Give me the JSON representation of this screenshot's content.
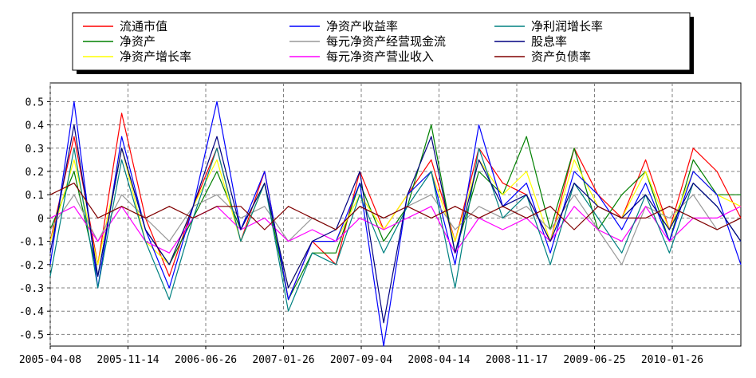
{
  "chart_data": {
    "type": "line",
    "title": "",
    "xlabel": "",
    "ylabel": "",
    "ylim": [
      -0.55,
      0.58
    ],
    "grid": true,
    "legend_position": "top",
    "y_ticks": [
      0.5,
      0.4,
      0.3,
      0.2,
      0.1,
      0,
      -0.1,
      -0.2,
      -0.3,
      -0.4,
      -0.5
    ],
    "x_tick_labels": [
      "2005-04-08",
      "2005-11-14",
      "2006-06-26",
      "2007-01-26",
      "2007-09-04",
      "2008-04-14",
      "2008-11-17",
      "2009-06-25",
      "2010-01-26"
    ],
    "series": [
      {
        "name": "流通市值",
        "color": "#ff0000",
        "values": [
          -0.1,
          0.35,
          -0.2,
          0.45,
          0.0,
          -0.25,
          0.05,
          0.3,
          -0.1,
          0.2,
          -0.35,
          -0.1,
          -0.2,
          0.2,
          -0.05,
          0.1,
          0.25,
          -0.1,
          0.3,
          0.15,
          0.1,
          -0.1,
          0.3,
          0.1,
          0.0,
          0.25,
          -0.05,
          0.3,
          0.2,
          0.0
        ]
      },
      {
        "name": "净资产",
        "color": "#008000",
        "values": [
          -0.05,
          0.2,
          -0.25,
          0.3,
          -0.05,
          -0.2,
          0.0,
          0.2,
          -0.05,
          0.15,
          -0.35,
          -0.15,
          -0.15,
          0.15,
          -0.1,
          0.05,
          0.4,
          -0.15,
          0.2,
          0.1,
          0.35,
          -0.05,
          0.3,
          -0.05,
          0.1,
          0.2,
          -0.1,
          0.25,
          0.1,
          0.1
        ]
      },
      {
        "name": "净资产增长率",
        "color": "#ffff00",
        "values": [
          -0.1,
          0.25,
          -0.2,
          0.3,
          -0.1,
          -0.2,
          0.05,
          0.25,
          -0.1,
          0.15,
          -0.3,
          -0.1,
          -0.1,
          0.1,
          -0.05,
          0.1,
          0.2,
          -0.1,
          0.25,
          0.1,
          0.2,
          -0.1,
          0.25,
          0.05,
          0.0,
          0.2,
          -0.05,
          0.2,
          0.1,
          0.05
        ]
      },
      {
        "name": "净资产收益率",
        "color": "#0000ff",
        "values": [
          -0.2,
          0.5,
          -0.3,
          0.35,
          -0.05,
          -0.3,
          0.05,
          0.5,
          -0.05,
          0.2,
          -0.35,
          -0.1,
          -0.1,
          0.15,
          -0.55,
          0.1,
          0.2,
          -0.2,
          0.4,
          0.05,
          0.15,
          -0.15,
          0.2,
          0.1,
          -0.05,
          0.15,
          -0.1,
          0.2,
          0.1,
          -0.2
        ]
      },
      {
        "name": "每元净资产经营现金流",
        "color": "#999999",
        "values": [
          -0.05,
          0.1,
          -0.1,
          0.1,
          0.0,
          -0.1,
          0.05,
          0.1,
          0.0,
          0.05,
          -0.1,
          0.0,
          -0.05,
          0.05,
          0.0,
          0.05,
          0.1,
          -0.05,
          0.05,
          0.0,
          0.05,
          -0.05,
          0.1,
          -0.05,
          -0.2,
          0.05,
          0.0,
          0.1,
          -0.05,
          0.0
        ]
      },
      {
        "name": "每元净资产营业收入",
        "color": "#ff00ff",
        "values": [
          0.0,
          0.05,
          -0.1,
          0.05,
          -0.1,
          -0.15,
          0.0,
          0.05,
          -0.05,
          0.0,
          -0.1,
          -0.05,
          -0.1,
          0.0,
          -0.05,
          0.0,
          0.05,
          -0.15,
          0.0,
          -0.05,
          0.0,
          -0.1,
          0.05,
          -0.05,
          -0.1,
          0.05,
          -0.1,
          0.0,
          0.0,
          0.05
        ]
      },
      {
        "name": "净利润增长率",
        "color": "#008080",
        "values": [
          -0.25,
          0.3,
          -0.3,
          0.25,
          -0.1,
          -0.35,
          0.0,
          0.3,
          -0.1,
          0.15,
          -0.4,
          -0.15,
          -0.2,
          0.1,
          -0.15,
          0.05,
          0.2,
          -0.3,
          0.3,
          0.0,
          0.1,
          -0.2,
          0.15,
          0.0,
          -0.15,
          0.1,
          -0.15,
          0.15,
          0.05,
          -0.1
        ]
      },
      {
        "name": "股息率",
        "color": "#000080",
        "values": [
          -0.15,
          0.4,
          -0.25,
          0.3,
          -0.05,
          -0.2,
          0.05,
          0.35,
          -0.05,
          0.15,
          -0.3,
          -0.1,
          -0.05,
          0.2,
          -0.45,
          0.1,
          0.35,
          -0.15,
          0.25,
          0.05,
          0.1,
          -0.1,
          0.15,
          0.05,
          0.0,
          0.1,
          -0.05,
          0.15,
          0.05,
          -0.1
        ]
      },
      {
        "name": "资产负债率",
        "color": "#800000",
        "values": [
          0.1,
          0.15,
          0.0,
          0.05,
          0.0,
          0.05,
          0.0,
          0.05,
          0.05,
          -0.05,
          0.05,
          0.0,
          -0.05,
          0.05,
          0.0,
          0.05,
          0.0,
          0.05,
          0.0,
          0.05,
          0.0,
          0.05,
          -0.05,
          0.05,
          0.0,
          0.0,
          0.05,
          0.0,
          -0.05,
          0.0
        ]
      }
    ]
  }
}
